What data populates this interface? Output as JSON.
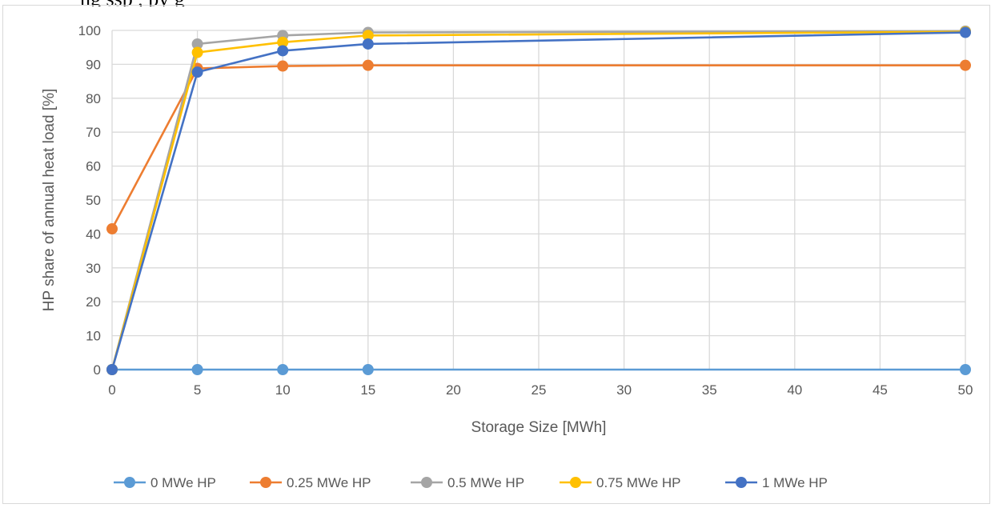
{
  "caption_fragment": "ng   ssp                 ,                         py   g",
  "chart_data": {
    "type": "line",
    "title": "",
    "xlabel": "Storage Size [MWh]",
    "ylabel": "HP share of annual heat load [%]",
    "ylim": [
      0,
      100
    ],
    "ytick_step": 10,
    "categories": [
      "0",
      "5",
      "10",
      "15",
      "20",
      "25",
      "30",
      "35",
      "40",
      "45",
      "50"
    ],
    "x": [
      0,
      5,
      10,
      15,
      50
    ],
    "grid": true,
    "legend_position": "bottom",
    "series": [
      {
        "name": "0 MWe HP",
        "color": "#5b9bd5",
        "values": [
          0,
          0,
          0,
          0,
          0
        ]
      },
      {
        "name": "0.25 MWe HP",
        "color": "#ed7d31",
        "values": [
          41.5,
          88.8,
          89.5,
          89.7,
          89.7
        ]
      },
      {
        "name": "0.5 MWe HP",
        "color": "#a5a5a5",
        "values": [
          0,
          96.0,
          98.5,
          99.4,
          99.8
        ]
      },
      {
        "name": "0.75 MWe HP",
        "color": "#ffc000",
        "values": [
          0,
          93.5,
          96.5,
          98.5,
          99.6
        ]
      },
      {
        "name": "1 MWe HP",
        "color": "#4472c4",
        "values": [
          0,
          87.7,
          94.0,
          96.0,
          99.4
        ]
      }
    ]
  }
}
